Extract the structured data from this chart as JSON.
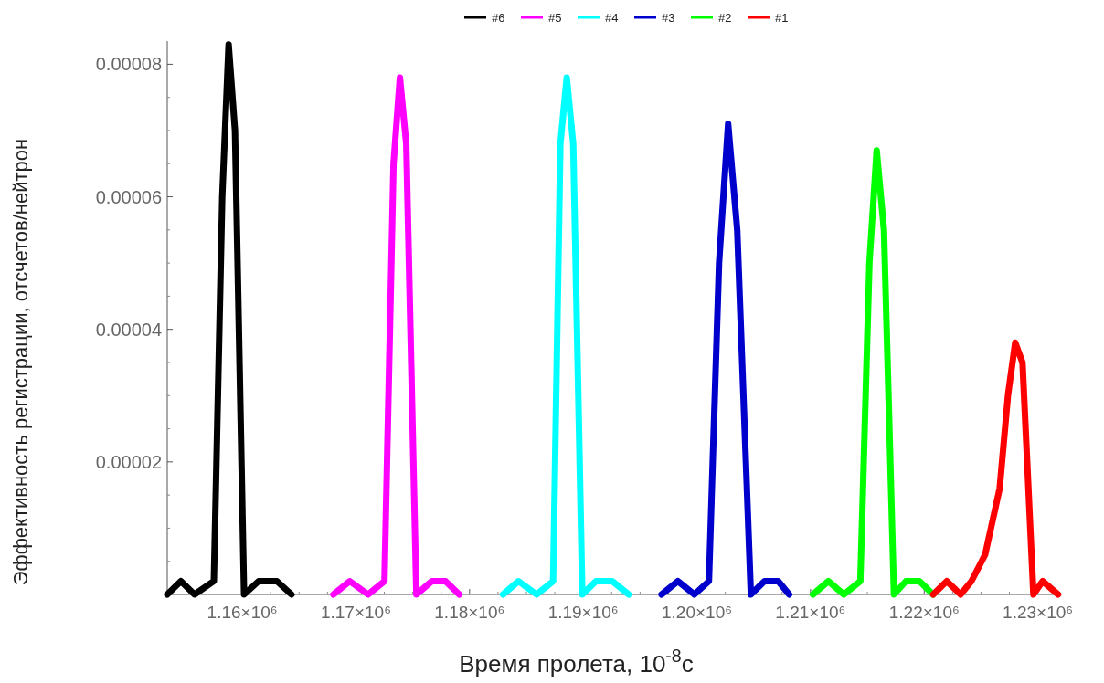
{
  "chart_data": {
    "type": "line",
    "xlabel": "Время пролета, 10$^{-8}$c",
    "ylabel": "Эффективность регистрации, отсчетов/нейтрон",
    "xlim": [
      1153400,
      1231800
    ],
    "ylim": [
      0,
      8.35e-05
    ],
    "xticks": [
      {
        "value": 1160000,
        "label": "1.16×10⁶"
      },
      {
        "value": 1170000,
        "label": "1.17×10⁶"
      },
      {
        "value": 1180000,
        "label": "1.18×10⁶"
      },
      {
        "value": 1190000,
        "label": "1.19×10⁶"
      },
      {
        "value": 1200000,
        "label": "1.20×10⁶"
      },
      {
        "value": 1210000,
        "label": "1.21×10⁶"
      },
      {
        "value": 1220000,
        "label": "1.22×10⁶"
      },
      {
        "value": 1230000,
        "label": "1.23×10⁶"
      }
    ],
    "yticks": [
      {
        "value": 0,
        "label": null
      },
      {
        "value": 2e-05,
        "label": "0.00002"
      },
      {
        "value": 4e-05,
        "label": "0.00004"
      },
      {
        "value": 6e-05,
        "label": "0.00006"
      },
      {
        "value": 8e-05,
        "label": "0.00008"
      }
    ],
    "legend": "top",
    "grid": false,
    "marker": "none",
    "line_style": "solid",
    "series": [
      {
        "name": "#6",
        "color": "#000000",
        "x": [
          1153400,
          1154600,
          1155800,
          1157500,
          1158240,
          1158800,
          1159360,
          1160160,
          1161440,
          1163050,
          1164330
        ],
        "values": [
          0,
          2e-06,
          0,
          2e-06,
          6e-05,
          8.3e-05,
          7e-05,
          0,
          2e-06,
          2e-06,
          0
        ]
      },
      {
        "name": "#5",
        "color": "#ff00ff",
        "x": [
          1168020,
          1169460,
          1171070,
          1172510,
          1173310,
          1173870,
          1174430,
          1175320,
          1176680,
          1177880,
          1179090
        ],
        "values": [
          0,
          2e-06,
          0,
          2e-06,
          6.5e-05,
          7.8e-05,
          6.8e-05,
          0,
          2e-06,
          2e-06,
          0
        ]
      },
      {
        "name": "#4",
        "color": "#00ffff",
        "x": [
          1182940,
          1184300,
          1185900,
          1187350,
          1187990,
          1188550,
          1189120,
          1189920,
          1191120,
          1192560,
          1194000
        ],
        "values": [
          0,
          2e-06,
          0,
          2e-06,
          6.8e-05,
          7.8e-05,
          6.8e-05,
          0,
          2e-06,
          2e-06,
          0
        ]
      },
      {
        "name": "#3",
        "color": "#0000cc",
        "x": [
          1196890,
          1198330,
          1199780,
          1201060,
          1201950,
          1202750,
          1203550,
          1204750,
          1205950,
          1207160,
          1208120
        ],
        "values": [
          0,
          2e-06,
          0,
          2e-06,
          5e-05,
          7.1e-05,
          5.5e-05,
          0,
          2e-06,
          2e-06,
          0
        ]
      },
      {
        "name": "#2",
        "color": "#00ff00",
        "x": [
          1210210,
          1211570,
          1212930,
          1214380,
          1215180,
          1215820,
          1216460,
          1217340,
          1218390,
          1219590,
          1220790
        ],
        "values": [
          0,
          2e-06,
          0,
          2e-06,
          5e-05,
          6.7e-05,
          5.5e-05,
          0,
          2e-06,
          2e-06,
          0
        ]
      },
      {
        "name": "#1",
        "color": "#ff0000",
        "x": [
          1220790,
          1221990,
          1223200,
          1224160,
          1225360,
          1226640,
          1227370,
          1228010,
          1228650,
          1229610,
          1230420,
          1231780
        ],
        "values": [
          0,
          2e-06,
          0,
          2e-06,
          6e-06,
          1.6e-05,
          3e-05,
          3.8e-05,
          3.5e-05,
          0,
          2e-06,
          0
        ]
      }
    ]
  }
}
